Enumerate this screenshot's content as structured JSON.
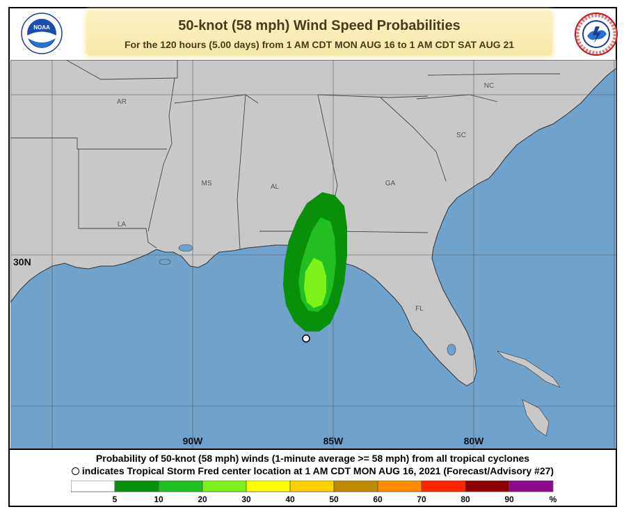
{
  "header": {
    "title": "50-knot (58 mph) Wind Speed Probabilities",
    "subtitle": "For the 120 hours (5.00 days) from 1 AM CDT MON AUG 16 to 1 AM CDT SAT AUG 21",
    "left_logo": "noaa-logo",
    "right_logo": "nws-logo"
  },
  "map": {
    "state_labels": [
      "AR",
      "MS",
      "AL",
      "GA",
      "NC",
      "SC",
      "LA",
      "FL"
    ],
    "latitude_labels": [
      "30N"
    ],
    "longitude_labels": [
      "90W",
      "85W",
      "80W"
    ],
    "colors": {
      "ocean": "#6fa3cc",
      "land": "#c8c8c8",
      "prob_5_10": "#0a8f0a",
      "prob_10_20": "#22bf22",
      "prob_20_30": "#7cf21a"
    }
  },
  "footer": {
    "caption_line1": "Probability of 50-knot (58 mph) winds (1-minute average >= 58 mph) from all tropical cyclones",
    "caption_line2": "indicates Tropical Storm Fred center location at 1 AM CDT MON AUG 16, 2021 (Forecast/Advisory #27)"
  },
  "legend": {
    "colors": [
      "#ffffff",
      "#0a8f0a",
      "#22bf22",
      "#7cf21a",
      "#ffff00",
      "#ffd000",
      "#c08a00",
      "#ff8c00",
      "#ff2600",
      "#8c0000",
      "#8c0a8c"
    ],
    "labels": [
      "5",
      "10",
      "20",
      "30",
      "40",
      "50",
      "60",
      "70",
      "80",
      "90",
      "%"
    ]
  }
}
